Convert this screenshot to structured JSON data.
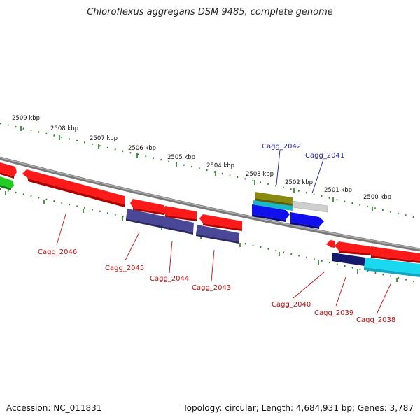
{
  "header": {
    "title": "Chloroflexus aggregans DSM 9485, complete genome"
  },
  "footer": {
    "accession": "Accession: NC_011831",
    "topology": "Topology: circular; Length: 4,684,931 bp; Genes: 3,787"
  },
  "colors": {
    "backbone": "#808080",
    "tick": "#1e7d1e",
    "forward_label": "#1a1aa8",
    "reverse_label": "#c01010",
    "gene_red": "#ff1a1a",
    "gene_navy": "#4a4896",
    "gene_dark_navy": "#141a6e",
    "gene_blue": "#1010ee",
    "gene_cyan": "#1ad8f0",
    "gene_olive": "#8a8a10",
    "gene_teal": "#18b8c8",
    "gene_gray": "#c8c8c8",
    "gene_green": "#22cc22"
  },
  "scale": {
    "unit": "kbp",
    "ticks": [
      {
        "kbp": 2509,
        "label": "2509 kbp"
      },
      {
        "kbp": 2508,
        "label": "2508 kbp"
      },
      {
        "kbp": 2507,
        "label": "2507 kbp"
      },
      {
        "kbp": 2506,
        "label": "2506 kbp"
      },
      {
        "kbp": 2505,
        "label": "2505 kbp"
      },
      {
        "kbp": 2504,
        "label": "2504 kbp"
      },
      {
        "kbp": 2503,
        "label": "2503 kbp"
      },
      {
        "kbp": 2502,
        "label": "2502 kbp"
      },
      {
        "kbp": 2501,
        "label": "2501 kbp"
      },
      {
        "kbp": 2500,
        "label": "2500 kbp"
      }
    ]
  },
  "genes": {
    "forward_labeled": [
      {
        "name": "Cagg_2042"
      },
      {
        "name": "Cagg_2041"
      }
    ],
    "reverse_labeled": [
      {
        "name": "Cagg_2046"
      },
      {
        "name": "Cagg_2045"
      },
      {
        "name": "Cagg_2044"
      },
      {
        "name": "Cagg_2043"
      },
      {
        "name": "Cagg_2040"
      },
      {
        "name": "Cagg_2039"
      },
      {
        "name": "Cagg_2038"
      }
    ]
  }
}
